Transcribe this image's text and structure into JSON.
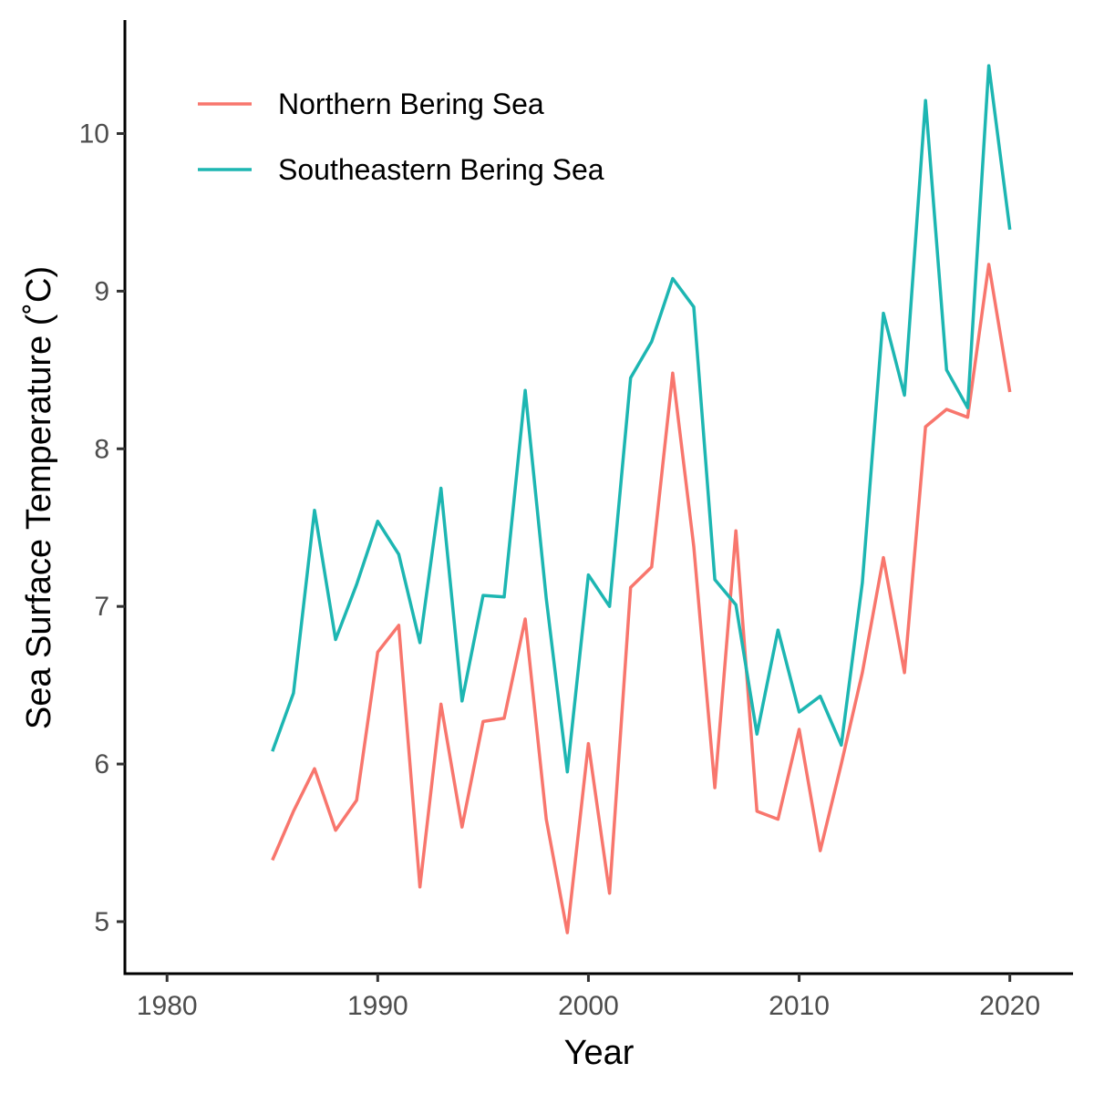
{
  "chart_data": {
    "type": "line",
    "xlabel": "Year",
    "ylabel": "Sea Surface Temperature (˚C)",
    "xlim": [
      1978,
      2023
    ],
    "ylim": [
      4.67,
      10.72
    ],
    "xticks": [
      1980,
      1990,
      2000,
      2010,
      2020
    ],
    "yticks": [
      5,
      6,
      7,
      8,
      9,
      10
    ],
    "grid": false,
    "legend": "top-left",
    "x": [
      1985,
      1986,
      1987,
      1988,
      1989,
      1990,
      1991,
      1992,
      1993,
      1994,
      1995,
      1996,
      1997,
      1998,
      1999,
      2000,
      2001,
      2002,
      2003,
      2004,
      2005,
      2006,
      2007,
      2008,
      2009,
      2010,
      2011,
      2012,
      2013,
      2014,
      2015,
      2016,
      2017,
      2018,
      2019,
      2020
    ],
    "series": [
      {
        "name": "Northern Bering Sea",
        "color": "#F8766D",
        "values": [
          5.39,
          5.7,
          5.97,
          5.58,
          5.77,
          6.71,
          6.88,
          5.22,
          6.38,
          5.6,
          6.27,
          6.29,
          6.92,
          5.65,
          4.93,
          6.13,
          5.18,
          7.12,
          7.25,
          8.48,
          7.38,
          5.85,
          7.48,
          5.7,
          5.65,
          6.22,
          5.45,
          6.0,
          6.58,
          7.31,
          6.58,
          8.14,
          8.25,
          8.2,
          9.17,
          8.36
        ]
      },
      {
        "name": "Southeastern Bering Sea",
        "color": "#1DB6B2",
        "values": [
          6.08,
          6.45,
          7.61,
          6.79,
          7.14,
          7.54,
          7.33,
          6.77,
          7.75,
          6.4,
          7.07,
          7.06,
          8.37,
          7.05,
          5.95,
          7.2,
          7.0,
          8.45,
          8.68,
          9.08,
          8.9,
          7.17,
          7.01,
          6.19,
          6.85,
          6.33,
          6.43,
          6.12,
          7.15,
          8.86,
          8.34,
          10.21,
          8.5,
          8.26,
          10.43,
          9.39
        ]
      }
    ]
  }
}
